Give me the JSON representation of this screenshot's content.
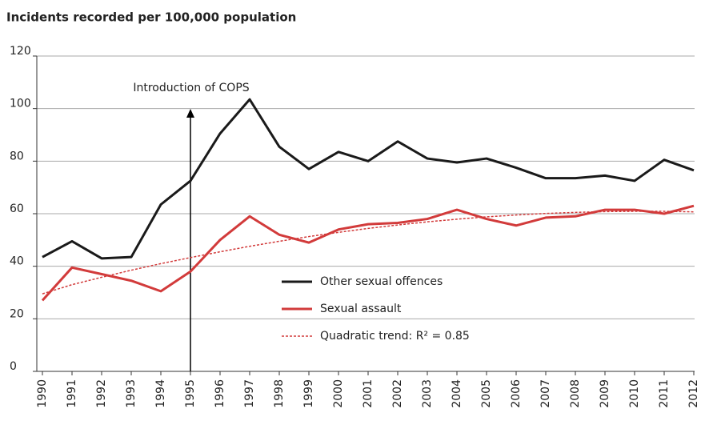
{
  "chart_data": {
    "type": "line",
    "title": "Incidents recorded per 100,000 population",
    "categories": [
      "1990",
      "1991",
      "1992",
      "1993",
      "1994",
      "1995",
      "1996",
      "1997",
      "1998",
      "1999",
      "2000",
      "2001",
      "2002",
      "2003",
      "2004",
      "2005",
      "2006",
      "2007",
      "2008",
      "2009",
      "2010",
      "2011",
      "2012"
    ],
    "series": [
      {
        "name": "Other sexual offences",
        "color": "#1a1a1a",
        "style": "solid",
        "values": [
          43.5,
          49.5,
          43,
          43.5,
          63.5,
          72.5,
          90.5,
          103.5,
          85.5,
          77,
          83.5,
          80,
          87.5,
          81,
          79.5,
          81,
          77.5,
          73.5,
          73.5,
          74.5,
          72.5,
          80.5,
          76.5
        ]
      },
      {
        "name": "Sexual assault",
        "color": "#d23b3b",
        "style": "solid",
        "values": [
          27,
          39.5,
          37,
          34.5,
          30.5,
          38,
          50,
          59,
          52,
          49,
          54,
          56,
          56.5,
          58,
          61.5,
          58,
          55.5,
          58.5,
          59,
          61.5,
          61.5,
          60,
          63
        ]
      },
      {
        "name": "Quadratic trend: R² = 0.85",
        "color": "#d23b3b",
        "style": "dashed",
        "values": [
          29.5,
          33,
          35.8,
          38.5,
          41,
          43.3,
          45.5,
          47.6,
          49.5,
          51.3,
          52.9,
          54.4,
          55.7,
          56.9,
          57.9,
          58.8,
          59.5,
          60.1,
          60.5,
          60.8,
          60.9,
          60.9,
          60.7
        ]
      }
    ],
    "annotation": {
      "text": "Introduction of COPS",
      "category": "1995"
    },
    "ylim": [
      0,
      120
    ],
    "yticks": [
      0,
      20,
      40,
      60,
      80,
      100,
      120
    ],
    "grid": true,
    "legend": "bottom-center"
  }
}
